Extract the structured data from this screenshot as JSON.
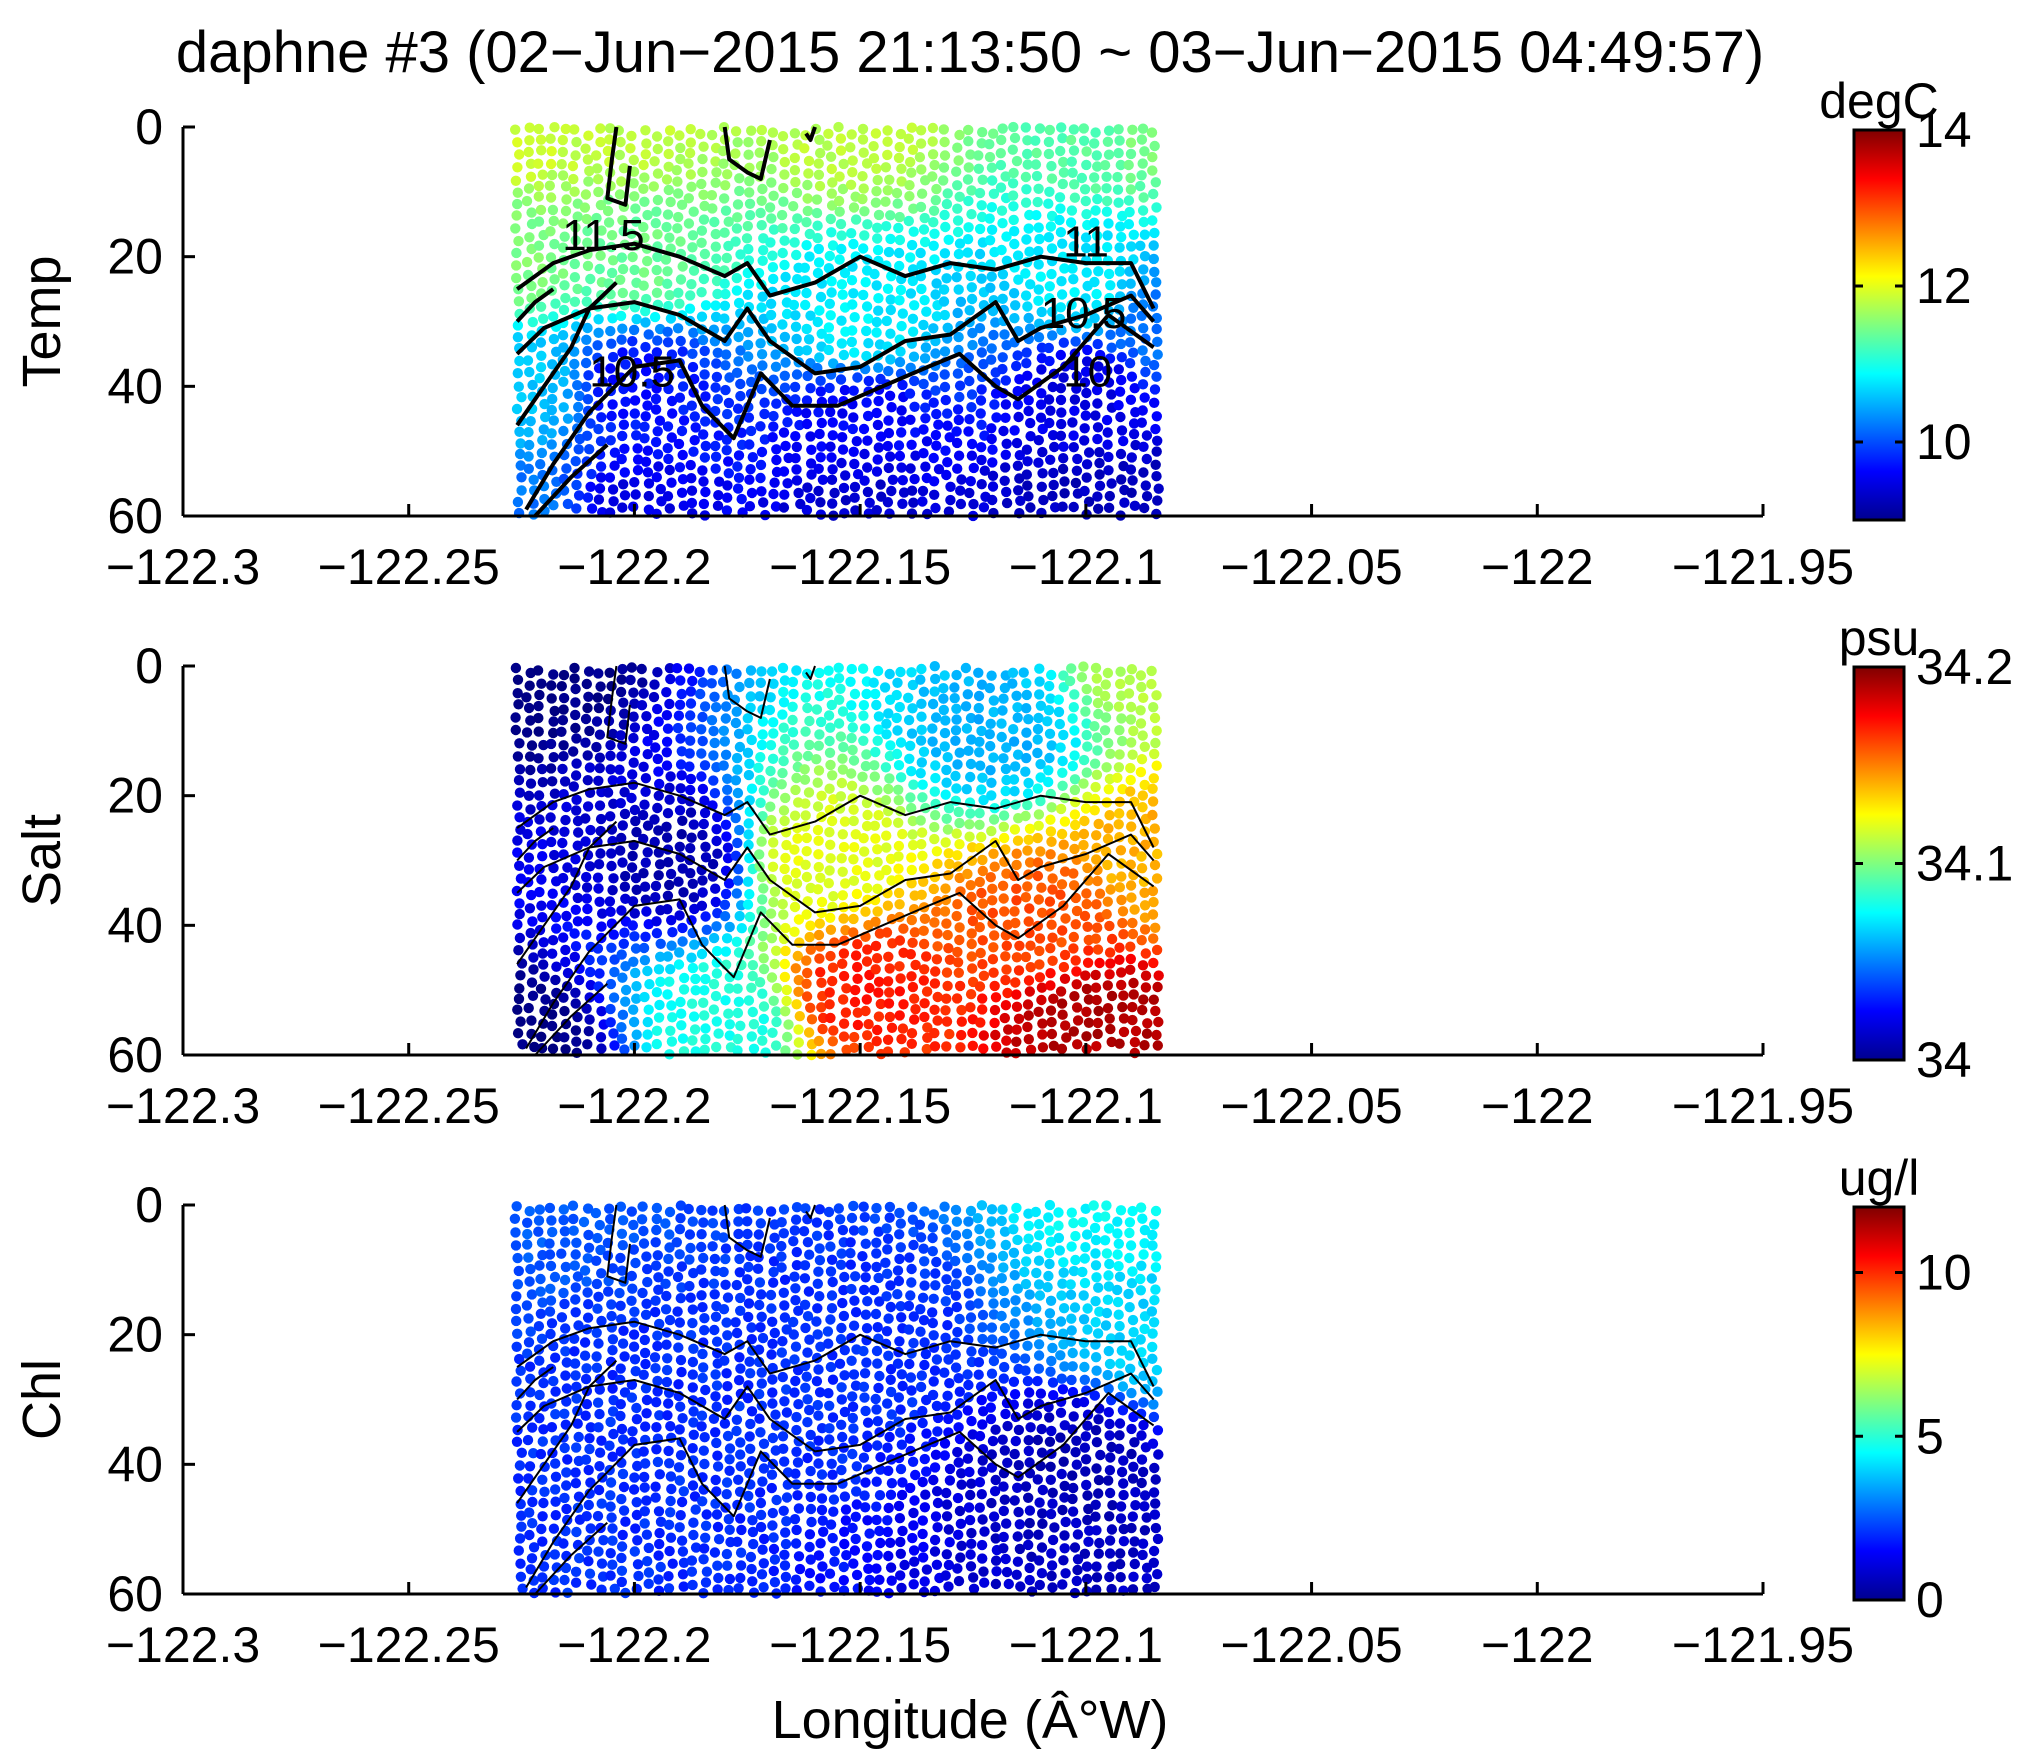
{
  "figure": {
    "title": "daphne #3 (02−Jun−2015 21:13:50 ~ 03−Jun−2015 04:49:57)",
    "xlabel": "Longitude (Â°W)"
  },
  "chart_data": [
    {
      "type": "scatter",
      "ylabel": "Temp",
      "unit": "degC",
      "xlim": [
        -122.3,
        -121.95
      ],
      "ylim": [
        0,
        60
      ],
      "y_reversed": true,
      "xticks": [
        -122.3,
        -122.25,
        -122.2,
        -122.15,
        -122.1,
        -122.05,
        -122,
        -121.95
      ],
      "xtick_labels": [
        "−122.3",
        "−122.25",
        "−122.2",
        "−122.15",
        "−122.1",
        "−122.05",
        "−122",
        "−121.95"
      ],
      "yticks": [
        0,
        20,
        40,
        60
      ],
      "ytick_labels": [
        "0",
        "20",
        "40",
        "60"
      ],
      "colorbar": {
        "range": [
          9,
          14
        ],
        "ticks": [
          10,
          12,
          14
        ],
        "tick_labels": [
          "10",
          "12",
          "14"
        ],
        "colormap": "jet"
      },
      "contour_labels": [
        {
          "text": "11.5",
          "x": -122.216,
          "y": 19
        },
        {
          "text": "11",
          "x": -122.105,
          "y": 20
        },
        {
          "text": "10.5",
          "x": -122.11,
          "y": 31
        },
        {
          "text": "10.5",
          "x": -122.21,
          "y": 40
        },
        {
          "text": "10",
          "x": -122.105,
          "y": 40
        }
      ],
      "profile_x_range": [
        -122.226,
        -122.085
      ],
      "samples": [
        {
          "x": -122.225,
          "y": 0,
          "value": 11.9
        },
        {
          "x": -122.225,
          "y": 20,
          "value": 11.5
        },
        {
          "x": -122.225,
          "y": 40,
          "value": 10.6
        },
        {
          "x": -122.225,
          "y": 60,
          "value": 10.2
        },
        {
          "x": -122.2,
          "y": 0,
          "value": 11.8
        },
        {
          "x": -122.2,
          "y": 20,
          "value": 11.4
        },
        {
          "x": -122.2,
          "y": 40,
          "value": 9.7
        },
        {
          "x": -122.2,
          "y": 60,
          "value": 9.5
        },
        {
          "x": -122.15,
          "y": 0,
          "value": 11.8
        },
        {
          "x": -122.15,
          "y": 30,
          "value": 10.8
        },
        {
          "x": -122.15,
          "y": 45,
          "value": 9.6
        },
        {
          "x": -122.15,
          "y": 60,
          "value": 9.4
        },
        {
          "x": -122.1,
          "y": 0,
          "value": 11.3
        },
        {
          "x": -122.1,
          "y": 25,
          "value": 10.8
        },
        {
          "x": -122.1,
          "y": 40,
          "value": 9.5
        },
        {
          "x": -122.1,
          "y": 60,
          "value": 9.3
        },
        {
          "x": -122.085,
          "y": 0,
          "value": 11.5
        },
        {
          "x": -122.085,
          "y": 30,
          "value": 10.2
        },
        {
          "x": -122.085,
          "y": 60,
          "value": 9.3
        }
      ]
    },
    {
      "type": "scatter",
      "ylabel": "Salt",
      "unit": "psu",
      "xlim": [
        -122.3,
        -121.95
      ],
      "ylim": [
        0,
        60
      ],
      "y_reversed": true,
      "xticks": [
        -122.3,
        -122.25,
        -122.2,
        -122.15,
        -122.1,
        -122.05,
        -122,
        -121.95
      ],
      "xtick_labels": [
        "−122.3",
        "−122.25",
        "−122.2",
        "−122.15",
        "−122.1",
        "−122.05",
        "−122",
        "−121.95"
      ],
      "yticks": [
        0,
        20,
        40,
        60
      ],
      "ytick_labels": [
        "0",
        "20",
        "40",
        "60"
      ],
      "colorbar": {
        "range": [
          34,
          34.2
        ],
        "ticks": [
          34,
          34.1,
          34.2
        ],
        "tick_labels": [
          "34",
          "34.1",
          "34.2"
        ],
        "colormap": "jet"
      },
      "contour_labels": [],
      "profile_x_range": [
        -122.226,
        -122.085
      ],
      "samples": [
        {
          "x": -122.225,
          "y": 0,
          "value": 34.0
        },
        {
          "x": -122.225,
          "y": 60,
          "value": 34.0
        },
        {
          "x": -122.19,
          "y": 30,
          "value": 34.01
        },
        {
          "x": -122.18,
          "y": 55,
          "value": 34.08
        },
        {
          "x": -122.16,
          "y": 30,
          "value": 34.12
        },
        {
          "x": -122.15,
          "y": 50,
          "value": 34.17
        },
        {
          "x": -122.12,
          "y": 10,
          "value": 34.06
        },
        {
          "x": -122.11,
          "y": 40,
          "value": 34.16
        },
        {
          "x": -122.1,
          "y": 55,
          "value": 34.19
        },
        {
          "x": -122.085,
          "y": 0,
          "value": 34.11
        },
        {
          "x": -122.085,
          "y": 30,
          "value": 34.14
        },
        {
          "x": -122.085,
          "y": 60,
          "value": 34.19
        }
      ]
    },
    {
      "type": "scatter",
      "ylabel": "Chl",
      "unit": "ug/l",
      "xlim": [
        -122.3,
        -121.95
      ],
      "ylim": [
        0,
        60
      ],
      "y_reversed": true,
      "xticks": [
        -122.3,
        -122.25,
        -122.2,
        -122.15,
        -122.1,
        -122.05,
        -122,
        -121.95
      ],
      "xtick_labels": [
        "−122.3",
        "−122.25",
        "−122.2",
        "−122.15",
        "−122.1",
        "−122.05",
        "−122",
        "−121.95"
      ],
      "yticks": [
        0,
        20,
        40,
        60
      ],
      "ytick_labels": [
        "0",
        "20",
        "40",
        "60"
      ],
      "colorbar": {
        "range": [
          0,
          12
        ],
        "ticks": [
          0,
          5,
          10
        ],
        "tick_labels": [
          "0",
          "5",
          "10"
        ],
        "colormap": "jet"
      },
      "contour_labels": [],
      "profile_x_range": [
        -122.226,
        -122.085
      ],
      "samples": [
        {
          "x": -122.225,
          "y": 0,
          "value": 2.5
        },
        {
          "x": -122.2,
          "y": 30,
          "value": 2.0
        },
        {
          "x": -122.15,
          "y": 20,
          "value": 2.0
        },
        {
          "x": -122.1,
          "y": 40,
          "value": 0.7
        },
        {
          "x": -122.09,
          "y": 0,
          "value": 4.5
        },
        {
          "x": -122.085,
          "y": 20,
          "value": 4.0
        },
        {
          "x": -122.085,
          "y": 60,
          "value": 0.8
        }
      ]
    }
  ]
}
